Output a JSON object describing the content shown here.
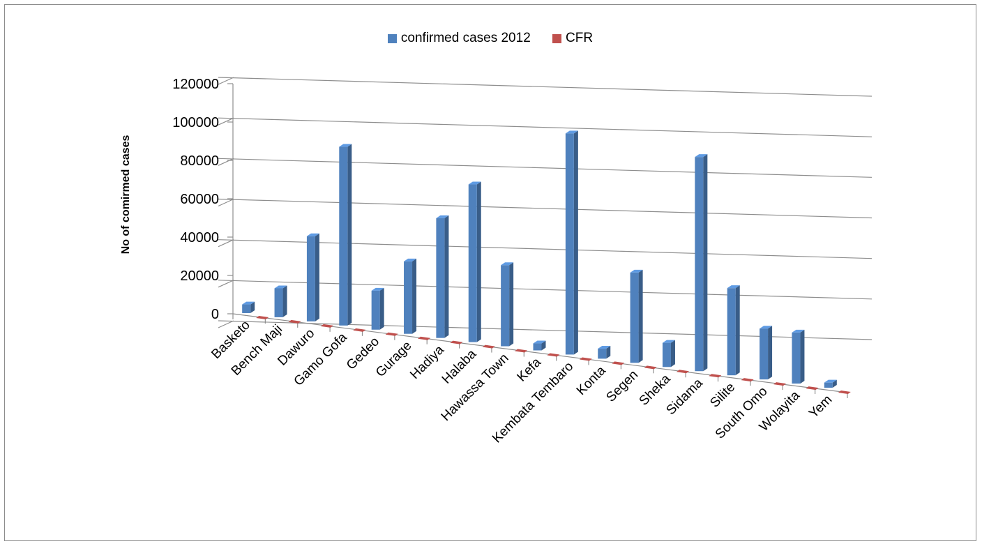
{
  "chart_data": {
    "type": "bar",
    "style": "3d-column",
    "title": "",
    "xlabel": "",
    "ylabel": "No of comirmed cases",
    "ylim": [
      0,
      120000
    ],
    "yticks": [
      0,
      20000,
      40000,
      60000,
      80000,
      100000,
      120000
    ],
    "ytick_labels": [
      "0",
      "20000",
      "40000",
      "60000",
      "80000",
      "100000",
      "120000"
    ],
    "grid": true,
    "legend_position": "top",
    "categories": [
      "Basketo",
      "Bench Maji",
      "Dawuro",
      "Gamo Gofa",
      "Gedeo",
      "Gurage",
      "Hadiya",
      "Halaba",
      "Hawassa Town",
      "Kefa",
      "Kembata Tembaro",
      "Konta",
      "Segen",
      "Sheka",
      "Sidama",
      "Silite",
      "South Omo",
      "Wolayita",
      "Yem"
    ],
    "series": [
      {
        "name": "confirmed cases 2012",
        "color": "#4f81bd",
        "values": [
          4500,
          15000,
          44000,
          92000,
          20000,
          37000,
          61000,
          80000,
          41000,
          3500,
          111000,
          5000,
          45000,
          12000,
          106000,
          43000,
          25000,
          25000,
          2500
        ]
      },
      {
        "name": "CFR",
        "color": "#c0504d",
        "values": [
          0,
          0,
          0,
          0,
          0,
          0,
          0,
          0,
          0,
          0,
          0,
          0,
          0,
          0,
          0,
          0,
          0,
          0,
          0
        ]
      }
    ]
  }
}
